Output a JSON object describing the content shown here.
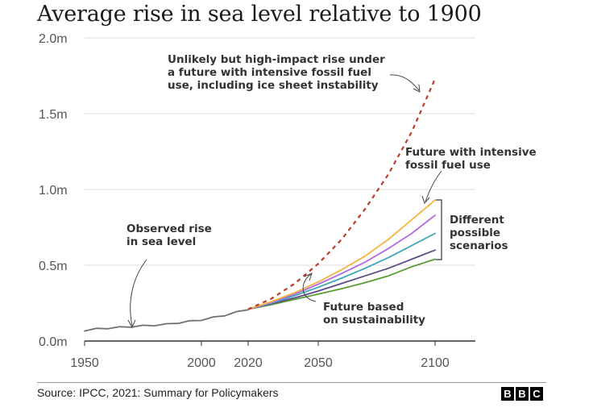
{
  "title": "Average rise in sea level relative to 1900",
  "source": "Source: IPCC, 2021: Summary for Policymakers",
  "logo": [
    "B",
    "B",
    "C"
  ],
  "chart_data": {
    "type": "line",
    "title": "Average rise in sea level relative to 1900",
    "xlabel": "",
    "ylabel": "",
    "xlim": [
      1950,
      2110
    ],
    "ylim": [
      0,
      2.0
    ],
    "x_ticks": [
      1950,
      2000,
      2020,
      2050,
      2100
    ],
    "y_ticks": [
      {
        "value": 0.0,
        "label": "0.0m"
      },
      {
        "value": 0.5,
        "label": "0.5m"
      },
      {
        "value": 1.0,
        "label": "1.0m"
      },
      {
        "value": 1.5,
        "label": "1.5m"
      },
      {
        "value": 2.0,
        "label": "2.0m"
      }
    ],
    "grid": "horizontal",
    "series": [
      {
        "key": "observed",
        "color": "#707070",
        "style": "solid",
        "x": [
          1950,
          1955,
          1960,
          1965,
          1970,
          1975,
          1980,
          1985,
          1990,
          1995,
          2000,
          2005,
          2010,
          2015,
          2020
        ],
        "y": [
          0.07,
          0.08,
          0.085,
          0.09,
          0.095,
          0.1,
          0.105,
          0.11,
          0.12,
          0.13,
          0.14,
          0.155,
          0.17,
          0.19,
          0.21
        ]
      },
      {
        "key": "high-impact",
        "color": "#c0392b",
        "style": "dashed",
        "x": [
          2020,
          2030,
          2040,
          2050,
          2060,
          2070,
          2080,
          2090,
          2100
        ],
        "y": [
          0.21,
          0.28,
          0.38,
          0.51,
          0.67,
          0.87,
          1.1,
          1.38,
          1.73
        ]
      },
      {
        "key": "ssp5-8.5",
        "color": "#f5b342",
        "style": "solid",
        "x": [
          2020,
          2030,
          2040,
          2050,
          2060,
          2070,
          2080,
          2090,
          2100
        ],
        "y": [
          0.21,
          0.26,
          0.32,
          0.39,
          0.47,
          0.56,
          0.67,
          0.8,
          0.93
        ]
      },
      {
        "key": "ssp3-7.0",
        "color": "#b36ae2",
        "style": "solid",
        "x": [
          2020,
          2030,
          2040,
          2050,
          2060,
          2070,
          2080,
          2090,
          2100
        ],
        "y": [
          0.21,
          0.255,
          0.31,
          0.375,
          0.445,
          0.52,
          0.61,
          0.71,
          0.83
        ]
      },
      {
        "key": "ssp2-4.5",
        "color": "#3fa6b8",
        "style": "solid",
        "x": [
          2020,
          2030,
          2040,
          2050,
          2060,
          2070,
          2080,
          2090,
          2100
        ],
        "y": [
          0.21,
          0.25,
          0.3,
          0.355,
          0.415,
          0.48,
          0.55,
          0.63,
          0.71
        ]
      },
      {
        "key": "ssp1-2.6",
        "color": "#5c4b8a",
        "style": "solid",
        "x": [
          2020,
          2030,
          2040,
          2050,
          2060,
          2070,
          2080,
          2090,
          2100
        ],
        "y": [
          0.21,
          0.245,
          0.285,
          0.33,
          0.38,
          0.43,
          0.48,
          0.54,
          0.6
        ]
      },
      {
        "key": "ssp1-1.9",
        "color": "#5a9e32",
        "style": "solid",
        "x": [
          2020,
          2030,
          2040,
          2050,
          2060,
          2070,
          2080,
          2090,
          2100
        ],
        "y": [
          0.21,
          0.24,
          0.275,
          0.31,
          0.345,
          0.385,
          0.43,
          0.49,
          0.54
        ]
      }
    ],
    "annotations": {
      "observed": [
        "Observed rise",
        "in sea level"
      ],
      "high_impact": [
        "Unlikely but high-impact rise under",
        "a future with intensive fossil fuel",
        "use, including ice sheet instability"
      ],
      "intensive": [
        "Future with intensive",
        "fossil fuel use"
      ],
      "scenarios": [
        "Different",
        "possible",
        "scenarios"
      ],
      "sustainability": [
        "Future based",
        "on sustainability"
      ]
    }
  }
}
